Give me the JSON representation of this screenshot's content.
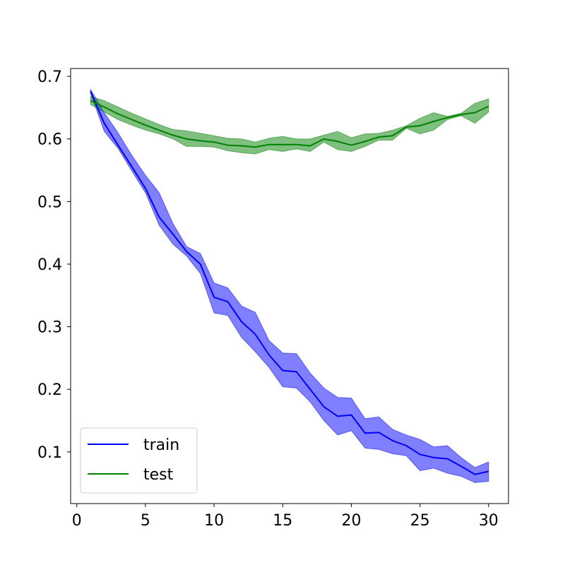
{
  "chart_data": {
    "type": "line",
    "title": "",
    "xlabel": "",
    "ylabel": "",
    "xlim": [
      -0.45,
      31.45
    ],
    "ylim": [
      0.0175,
      0.7125
    ],
    "grid": false,
    "legend_position": "lower-left",
    "x_ticks": [
      0,
      5,
      10,
      15,
      20,
      25,
      30
    ],
    "y_ticks": [
      0.1,
      0.2,
      0.3,
      0.4,
      0.5,
      0.6,
      0.7
    ],
    "x": [
      1,
      2,
      3,
      4,
      5,
      6,
      7,
      8,
      9,
      10,
      11,
      12,
      13,
      14,
      15,
      16,
      17,
      18,
      19,
      20,
      21,
      22,
      23,
      24,
      25,
      26,
      27,
      28,
      29,
      30
    ],
    "series": [
      {
        "name": "train",
        "color": "#0000ff",
        "mean": [
          0.676,
          0.625,
          0.59,
          0.556,
          0.521,
          0.475,
          0.448,
          0.42,
          0.4,
          0.347,
          0.34,
          0.308,
          0.288,
          0.255,
          0.23,
          0.228,
          0.2,
          0.172,
          0.157,
          0.159,
          0.13,
          0.131,
          0.118,
          0.11,
          0.096,
          0.091,
          0.089,
          0.077,
          0.064,
          0.069
        ],
        "lower": [
          0.673,
          0.612,
          0.585,
          0.549,
          0.514,
          0.462,
          0.432,
          0.413,
          0.385,
          0.322,
          0.318,
          0.283,
          0.26,
          0.235,
          0.204,
          0.202,
          0.18,
          0.15,
          0.127,
          0.134,
          0.106,
          0.104,
          0.097,
          0.094,
          0.07,
          0.074,
          0.066,
          0.061,
          0.051,
          0.053
        ],
        "upper": [
          0.679,
          0.642,
          0.61,
          0.574,
          0.542,
          0.514,
          0.465,
          0.428,
          0.417,
          0.37,
          0.362,
          0.333,
          0.323,
          0.278,
          0.258,
          0.257,
          0.226,
          0.202,
          0.187,
          0.186,
          0.153,
          0.156,
          0.136,
          0.127,
          0.12,
          0.108,
          0.11,
          0.091,
          0.075,
          0.084
        ]
      },
      {
        "name": "test",
        "color": "#008000",
        "mean": [
          0.661,
          0.651,
          0.64,
          0.631,
          0.622,
          0.614,
          0.606,
          0.6,
          0.597,
          0.595,
          0.59,
          0.589,
          0.587,
          0.591,
          0.591,
          0.591,
          0.589,
          0.6,
          0.596,
          0.59,
          0.596,
          0.603,
          0.605,
          0.619,
          0.621,
          0.628,
          0.634,
          0.639,
          0.642,
          0.652
        ],
        "lower": [
          0.655,
          0.643,
          0.631,
          0.622,
          0.614,
          0.608,
          0.6,
          0.588,
          0.588,
          0.587,
          0.581,
          0.578,
          0.576,
          0.583,
          0.58,
          0.584,
          0.58,
          0.595,
          0.583,
          0.58,
          0.588,
          0.598,
          0.598,
          0.617,
          0.608,
          0.614,
          0.631,
          0.637,
          0.625,
          0.643
        ],
        "upper": [
          0.668,
          0.661,
          0.651,
          0.641,
          0.632,
          0.623,
          0.615,
          0.613,
          0.609,
          0.605,
          0.601,
          0.6,
          0.595,
          0.601,
          0.604,
          0.6,
          0.6,
          0.606,
          0.612,
          0.602,
          0.608,
          0.609,
          0.614,
          0.621,
          0.633,
          0.642,
          0.636,
          0.641,
          0.657,
          0.664
        ]
      }
    ]
  }
}
